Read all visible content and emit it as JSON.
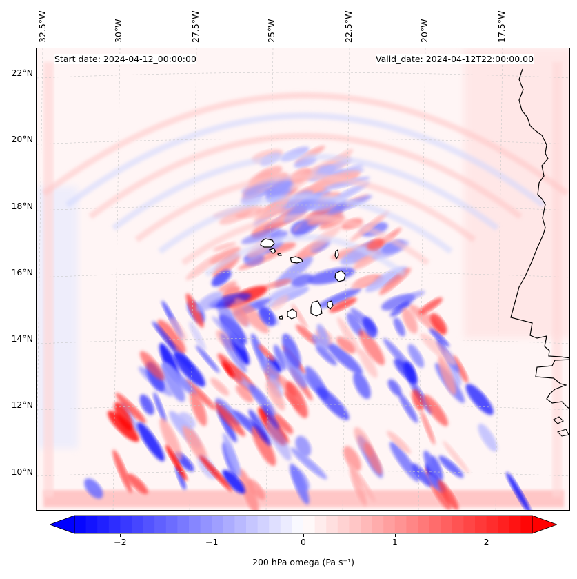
{
  "header": {
    "start_date": "Start date: 2024-04-12_00:00:00",
    "valid_date": "Valid_date: 2024-04-12T22:00:00.00"
  },
  "axes": {
    "lon_labels": [
      "32.5°W",
      "30°W",
      "27.5°W",
      "25°W",
      "22.5°W",
      "20°W",
      "17.5°W"
    ],
    "lat_labels": [
      "22°N",
      "20°N",
      "18°N",
      "16°N",
      "14°N",
      "12°N",
      "10°N"
    ]
  },
  "colorbar": {
    "ticks": [
      "−2",
      "−1",
      "0",
      "1",
      "2"
    ],
    "tick_values": [
      -2,
      -1,
      0,
      1,
      2
    ],
    "vmin": -2.5,
    "vmax": 2.5,
    "label": "200 hPa omega (Pa s⁻¹)",
    "colormap": "bwr",
    "colors": {
      "negative": "#0000ff",
      "zero": "#ffffff",
      "positive": "#ff0000"
    }
  },
  "map": {
    "variable": "200 hPa omega",
    "islands": "Cape Verde",
    "coast": "West Africa"
  }
}
